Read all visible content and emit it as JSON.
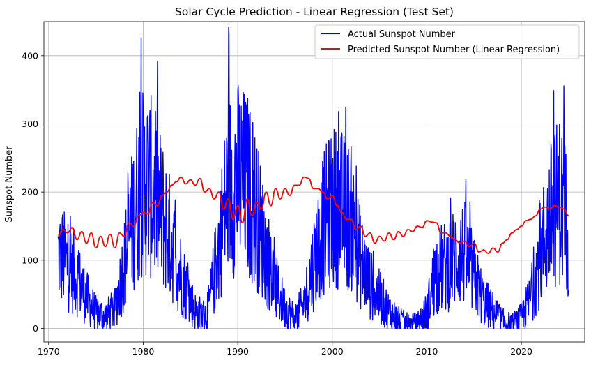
{
  "chart_data": {
    "type": "line",
    "title": "Solar Cycle Prediction - Linear Regression (Test Set)",
    "xlabel": "",
    "ylabel": "Sunspot Number",
    "xlim": [
      1969.5,
      2026.7
    ],
    "ylim": [
      -20,
      450
    ],
    "x_ticks": [
      1970,
      1980,
      1990,
      2000,
      2010,
      2020
    ],
    "y_ticks": [
      0,
      100,
      200,
      300,
      400
    ],
    "grid": true,
    "legend_position": "top-right",
    "series": [
      {
        "name": "Actual Sunspot Number",
        "color": "#0000ff",
        "style": "dense-noisy",
        "noise_scale": 0.6,
        "min_value": 0,
        "x": [
          1971.0,
          1972.0,
          1973.0,
          1974.0,
          1975.0,
          1976.0,
          1977.0,
          1978.0,
          1979.0,
          1979.8,
          1980.5,
          1981.5,
          1982.5,
          1983.5,
          1984.5,
          1985.5,
          1986.5,
          1987.0,
          1988.0,
          1989.0,
          1990.0,
          1991.0,
          1992.0,
          1993.0,
          1994.0,
          1995.0,
          1996.0,
          1997.0,
          1998.0,
          1999.0,
          2000.0,
          2001.0,
          2002.0,
          2003.0,
          2004.0,
          2005.0,
          2006.0,
          2007.0,
          2008.0,
          2009.0,
          2010.0,
          2011.0,
          2012.0,
          2013.0,
          2014.0,
          2015.0,
          2016.0,
          2017.0,
          2018.0,
          2019.0,
          2020.0,
          2021.0,
          2022.0,
          2023.0,
          2024.0,
          2025.0
        ],
        "values": [
          110,
          95,
          75,
          45,
          22,
          18,
          28,
          95,
          170,
          210,
          215,
          185,
          150,
          100,
          60,
          25,
          18,
          35,
          120,
          210,
          220,
          210,
          170,
          110,
          60,
          30,
          15,
          35,
          95,
          150,
          180,
          175,
          160,
          100,
          65,
          45,
          25,
          12,
          5,
          6,
          25,
          85,
          90,
          105,
          110,
          75,
          40,
          25,
          10,
          5,
          15,
          45,
          110,
          160,
          190,
          150
        ]
      },
      {
        "name": "Predicted Sunspot Number (Linear Regression)",
        "color": "#ff0000",
        "style": "smooth",
        "x": [
          1971.0,
          1971.5,
          1972.0,
          1972.5,
          1973.0,
          1973.5,
          1974.0,
          1974.5,
          1975.0,
          1975.5,
          1976.0,
          1976.5,
          1977.0,
          1977.5,
          1978.0,
          1978.5,
          1979.0,
          1979.5,
          1980.0,
          1980.5,
          1981.0,
          1981.5,
          1982.0,
          1982.5,
          1983.0,
          1983.5,
          1984.0,
          1984.5,
          1985.0,
          1985.5,
          1986.0,
          1986.5,
          1987.0,
          1987.5,
          1988.0,
          1988.5,
          1989.0,
          1989.5,
          1990.0,
          1990.5,
          1991.0,
          1991.5,
          1992.0,
          1992.5,
          1993.0,
          1993.5,
          1994.0,
          1994.5,
          1995.0,
          1995.5,
          1996.0,
          1996.5,
          1997.0,
          1997.5,
          1998.0,
          1998.5,
          1999.0,
          1999.5,
          2000.0,
          2000.5,
          2001.0,
          2001.5,
          2002.0,
          2002.5,
          2003.0,
          2003.5,
          2004.0,
          2004.5,
          2005.0,
          2005.5,
          2006.0,
          2006.5,
          2007.0,
          2007.5,
          2008.0,
          2008.5,
          2009.0,
          2009.5,
          2010.0,
          2010.5,
          2011.0,
          2011.5,
          2012.0,
          2012.5,
          2013.0,
          2013.5,
          2014.0,
          2014.5,
          2015.0,
          2015.5,
          2016.0,
          2016.5,
          2017.0,
          2017.5,
          2018.0,
          2018.5,
          2019.0,
          2019.5,
          2020.0,
          2020.5,
          2021.0,
          2021.5,
          2022.0,
          2022.5,
          2023.0,
          2023.5,
          2024.0,
          2024.5,
          2025.0
        ],
        "values": [
          135,
          145,
          140,
          148,
          130,
          142,
          125,
          140,
          118,
          135,
          120,
          138,
          118,
          140,
          135,
          155,
          150,
          165,
          170,
          168,
          185,
          180,
          195,
          200,
          210,
          215,
          222,
          212,
          218,
          210,
          220,
          200,
          205,
          190,
          200,
          175,
          190,
          160,
          180,
          155,
          190,
          165,
          185,
          175,
          200,
          180,
          205,
          190,
          205,
          195,
          210,
          210,
          222,
          220,
          205,
          205,
          200,
          190,
          195,
          180,
          170,
          160,
          160,
          145,
          150,
          135,
          140,
          125,
          135,
          128,
          140,
          130,
          142,
          135,
          145,
          142,
          150,
          148,
          158,
          156,
          155,
          140,
          140,
          135,
          130,
          125,
          128,
          120,
          125,
          112,
          115,
          110,
          118,
          112,
          125,
          130,
          140,
          145,
          150,
          158,
          160,
          165,
          175,
          178,
          175,
          180,
          178,
          175,
          165
        ]
      }
    ]
  }
}
